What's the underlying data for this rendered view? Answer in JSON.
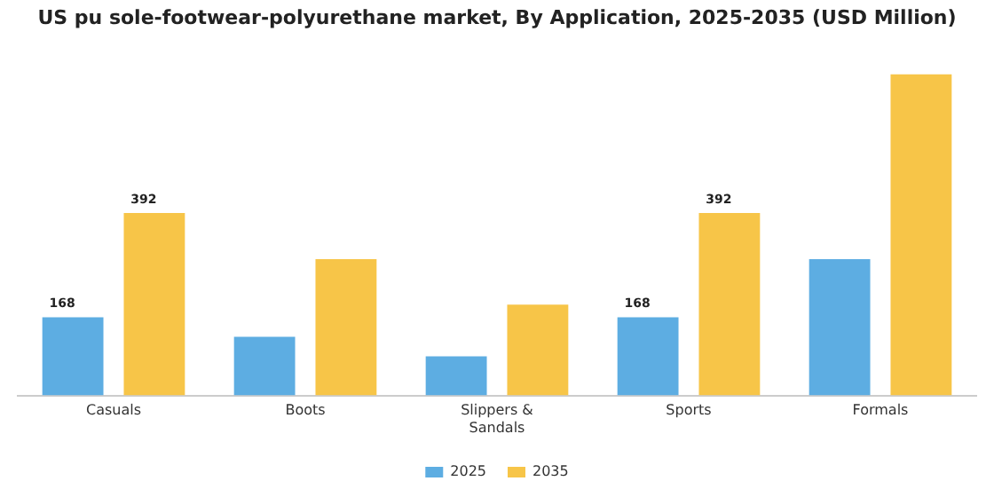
{
  "chart_data": {
    "type": "bar",
    "title": "US pu sole-footwear-polyurethane market, By Application, 2025-2035 (USD Million)",
    "categories": [
      "Casuals",
      "Boots",
      "Slippers & Sandals",
      "Sports",
      "Formals"
    ],
    "series": [
      {
        "name": "2025",
        "color": "#5dade2",
        "values": [
          168,
          126,
          84,
          168,
          293
        ],
        "value_labels": [
          "168",
          null,
          null,
          "168",
          null
        ]
      },
      {
        "name": "2035",
        "color": "#f7c548",
        "values": [
          392,
          293,
          195,
          392,
          690
        ],
        "value_labels": [
          "392",
          null,
          null,
          "392",
          null
        ]
      }
    ],
    "legend": "bottom",
    "grid": false
  }
}
